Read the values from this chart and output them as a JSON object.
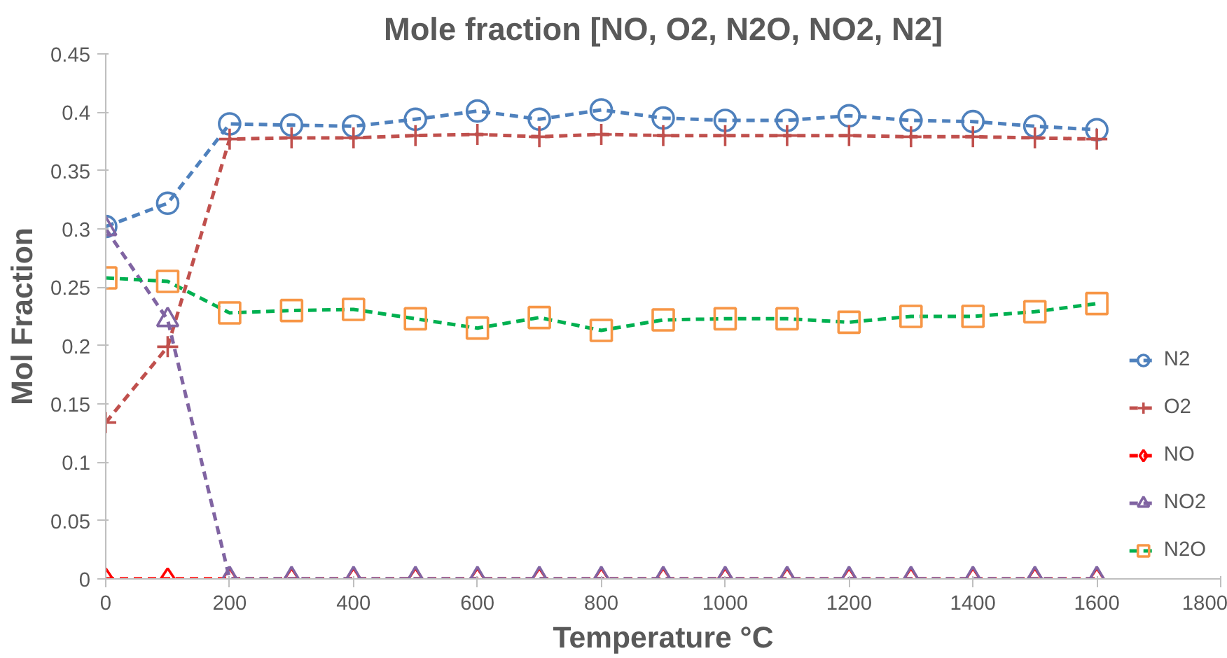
{
  "chart_data": {
    "type": "line",
    "title": "Mole fraction [NO, O2, N2O, NO2, N2]",
    "xlabel": "Temperature °C",
    "ylabel": "Mol Fraction",
    "x": [
      0,
      100,
      200,
      300,
      400,
      500,
      600,
      700,
      800,
      900,
      1000,
      1100,
      1200,
      1300,
      1400,
      1500,
      1600
    ],
    "series": [
      {
        "name": "N2",
        "color": "#4f81bd",
        "marker": "circle",
        "values": [
          0.302,
          0.322,
          0.39,
          0.389,
          0.388,
          0.394,
          0.401,
          0.394,
          0.402,
          0.395,
          0.393,
          0.393,
          0.397,
          0.393,
          0.392,
          0.388,
          0.385
        ]
      },
      {
        "name": "O2",
        "color": "#c0504d",
        "marker": "cross",
        "values": [
          0.134,
          0.199,
          0.377,
          0.378,
          0.378,
          0.38,
          0.381,
          0.379,
          0.381,
          0.38,
          0.38,
          0.38,
          0.38,
          0.379,
          0.379,
          0.378,
          0.377
        ]
      },
      {
        "name": "NO",
        "color": "#ff0000",
        "marker": "diamond",
        "values": [
          0,
          0,
          0,
          0,
          0,
          0,
          0,
          0,
          0,
          0,
          0,
          0,
          0,
          0,
          0,
          0,
          0
        ]
      },
      {
        "name": "NO2",
        "color": "#8064a2",
        "marker": "triangle",
        "values": [
          0.3,
          0.222,
          0,
          0,
          0,
          0,
          0,
          0,
          0,
          0,
          0,
          0,
          0,
          0,
          0,
          0,
          0
        ]
      },
      {
        "name": "N2O",
        "color": "#00b050",
        "marker": "square",
        "colors": [
          "#f79646",
          "#f79646",
          "#f79646",
          "#f79646",
          "#f79646",
          "#f79646",
          "#f79646",
          "#f79646",
          "#f79646",
          "#f79646",
          "#f79646",
          "#f79646",
          "#f79646",
          "#f79646",
          "#f79646",
          "#f79646",
          "#f79646"
        ],
        "values": [
          0.258,
          0.255,
          0.228,
          0.23,
          0.231,
          0.223,
          0.215,
          0.224,
          0.213,
          0.222,
          0.223,
          0.223,
          0.22,
          0.225,
          0.225,
          0.229,
          0.236
        ]
      }
    ],
    "xlim": [
      0,
      1800
    ],
    "xticks": [
      0,
      200,
      400,
      600,
      800,
      1000,
      1200,
      1400,
      1600,
      1800
    ],
    "ylim": [
      0,
      0.45
    ],
    "yticks": [
      0,
      0.05,
      0.1,
      0.15,
      0.2,
      0.25,
      0.3,
      0.35,
      0.4,
      0.45
    ],
    "line_style": "dashed",
    "grid": false,
    "legend": "bottom right"
  }
}
